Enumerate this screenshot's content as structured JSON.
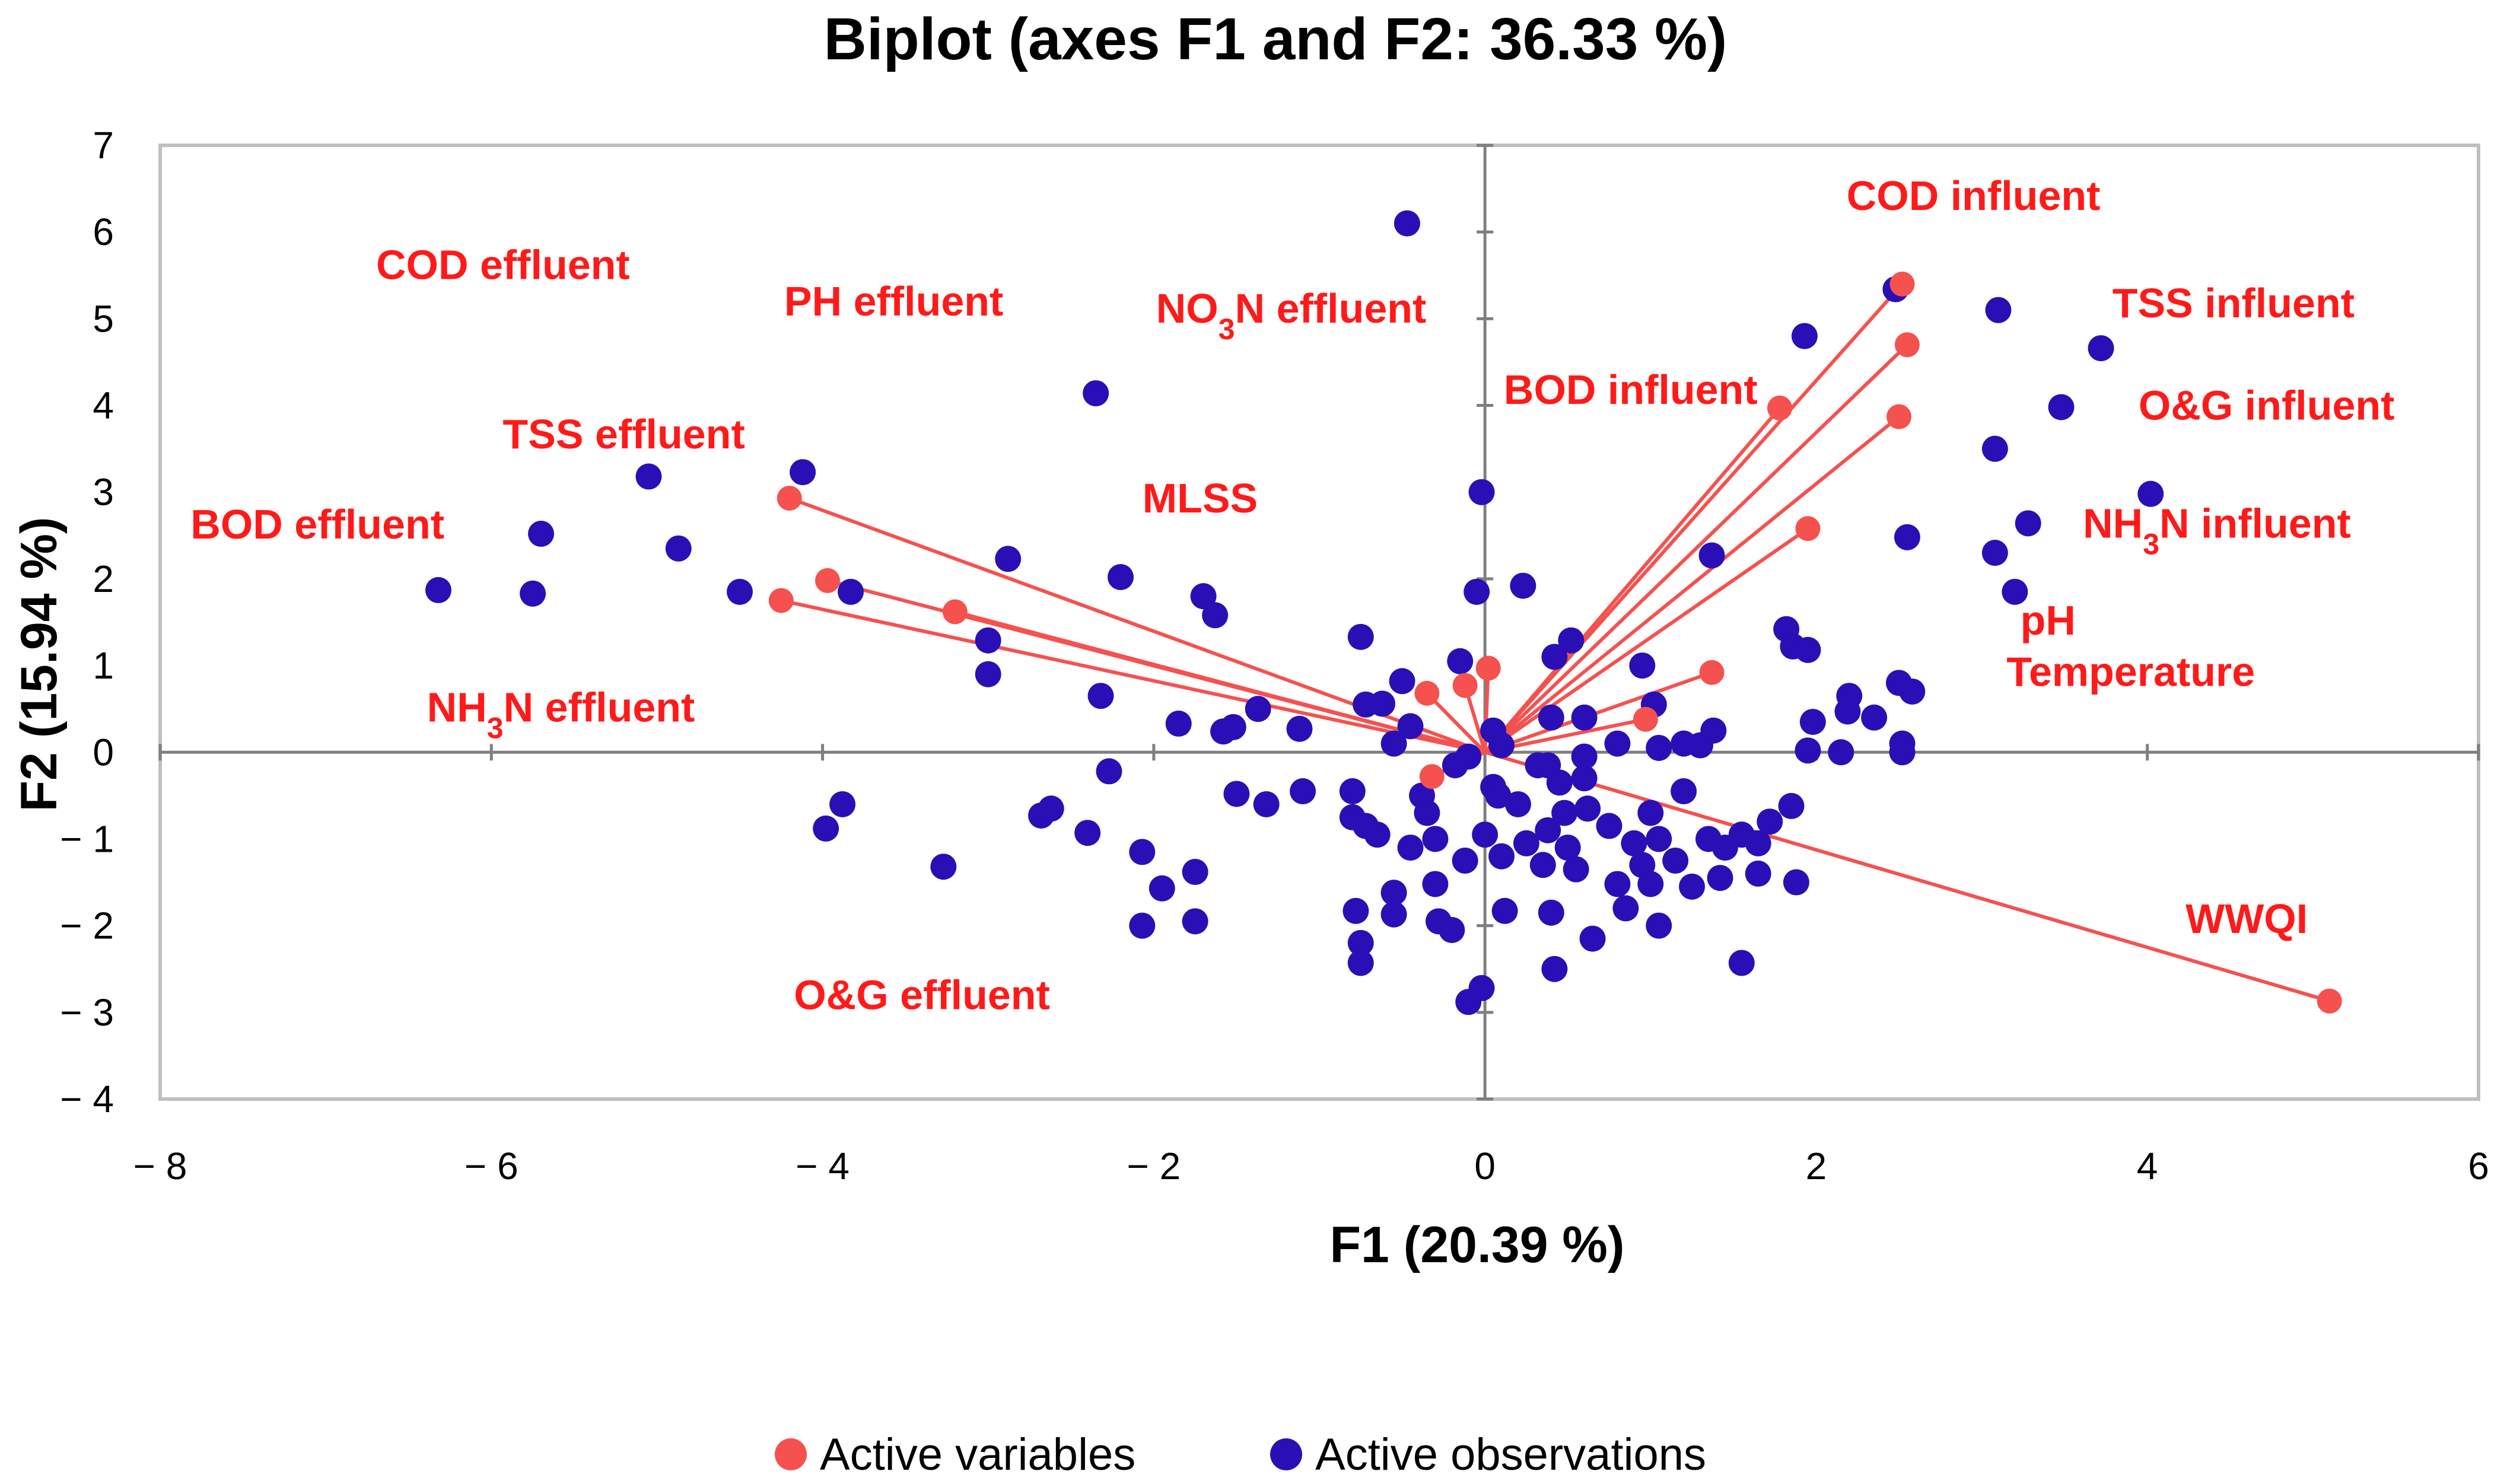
{
  "colors": {
    "variables": "#f5514f",
    "variable_label": "#ff1a1a",
    "observations": "#2a0fb6",
    "axis": "#7f7f7f",
    "frame": "#bfbfbf"
  },
  "chart_data": {
    "type": "scatter",
    "title": "Biplot (axes F1 and F2: 36.33 %)",
    "xlabel": "F1 (20.39 %)",
    "ylabel": "F2 (15.94 %)",
    "xlim": [
      -8,
      6
    ],
    "ylim": [
      -4,
      7
    ],
    "xticks": [
      "− 8",
      "− 6",
      "− 4",
      "− 2",
      "0",
      "2",
      "4",
      "6"
    ],
    "yticks": [
      "− 4",
      "− 3",
      "− 2",
      "− 1",
      "0",
      "1",
      "2",
      "3",
      "4",
      "5",
      "6",
      "7"
    ],
    "grid": false,
    "legend": {
      "position": "bottom",
      "entries": [
        "Active variables",
        "Active observations"
      ]
    },
    "series": [
      {
        "name": "Active variables",
        "points": [
          [
            2.52,
            5.4
          ],
          [
            2.55,
            4.7
          ],
          [
            1.78,
            3.97
          ],
          [
            2.5,
            3.87
          ],
          [
            1.95,
            2.58
          ],
          [
            1.37,
            0.92
          ],
          [
            0.97,
            0.38
          ],
          [
            5.1,
            -2.87
          ],
          [
            -4.2,
            2.93
          ],
          [
            -4.25,
            1.75
          ],
          [
            -3.97,
            1.98
          ],
          [
            -3.2,
            1.62
          ],
          [
            0.02,
            0.97
          ],
          [
            -0.35,
            0.68
          ],
          [
            -0.12,
            0.77
          ],
          [
            -0.32,
            -0.28
          ]
        ]
      },
      {
        "name": "Active observations",
        "points": [
          [
            -0.47,
            6.1
          ],
          [
            2.48,
            5.34
          ],
          [
            3.1,
            5.1
          ],
          [
            3.72,
            4.66
          ],
          [
            1.93,
            4.8
          ],
          [
            3.48,
            3.98
          ],
          [
            3.08,
            3.5
          ],
          [
            4.02,
            2.98
          ],
          [
            3.28,
            2.64
          ],
          [
            2.55,
            2.48
          ],
          [
            3.08,
            2.3
          ],
          [
            3.2,
            1.85
          ],
          [
            1.37,
            2.27
          ],
          [
            -5.05,
            3.18
          ],
          [
            -4.12,
            3.23
          ],
          [
            -5.7,
            2.52
          ],
          [
            -4.87,
            2.35
          ],
          [
            -6.32,
            1.87
          ],
          [
            -5.75,
            1.83
          ],
          [
            -4.5,
            1.85
          ],
          [
            -3.83,
            1.85
          ],
          [
            -3.0,
            1.29
          ],
          [
            -3.0,
            0.9
          ],
          [
            -2.88,
            2.23
          ],
          [
            -2.35,
            4.14
          ],
          [
            -2.2,
            2.02
          ],
          [
            -2.32,
            0.65
          ],
          [
            -1.7,
            1.8
          ],
          [
            -1.63,
            1.58
          ],
          [
            -1.85,
            0.33
          ],
          [
            -1.58,
            0.24
          ],
          [
            -1.52,
            0.29
          ],
          [
            -1.37,
            0.5
          ],
          [
            -1.12,
            0.27
          ],
          [
            -0.75,
            1.33
          ],
          [
            -0.72,
            0.55
          ],
          [
            -0.62,
            0.56
          ],
          [
            -0.5,
            0.82
          ],
          [
            -0.45,
            0.3
          ],
          [
            -0.55,
            0.1
          ],
          [
            -0.02,
            3.0
          ],
          [
            -0.05,
            1.85
          ],
          [
            0.23,
            1.92
          ],
          [
            -0.15,
            1.05
          ],
          [
            0.52,
            1.29
          ],
          [
            0.42,
            1.1
          ],
          [
            0.95,
            1.0
          ],
          [
            1.02,
            0.55
          ],
          [
            0.4,
            0.4
          ],
          [
            0.6,
            0.4
          ],
          [
            0.05,
            0.25
          ],
          [
            0.1,
            0.08
          ],
          [
            0.8,
            0.1
          ],
          [
            1.05,
            0.05
          ],
          [
            1.2,
            0.1
          ],
          [
            1.3,
            0.08
          ],
          [
            1.38,
            0.25
          ],
          [
            1.82,
            1.42
          ],
          [
            1.86,
            1.22
          ],
          [
            1.95,
            1.18
          ],
          [
            2.2,
            0.65
          ],
          [
            2.19,
            0.47
          ],
          [
            1.98,
            0.35
          ],
          [
            2.35,
            0.4
          ],
          [
            2.5,
            0.8
          ],
          [
            2.58,
            0.7
          ],
          [
            2.52,
            0.1
          ],
          [
            2.52,
            0.0
          ],
          [
            2.15,
            0.0
          ],
          [
            1.95,
            0.02
          ],
          [
            -3.98,
            -0.88
          ],
          [
            -3.88,
            -0.6
          ],
          [
            -3.27,
            -1.32
          ],
          [
            -2.68,
            -0.73
          ],
          [
            -2.62,
            -0.65
          ],
          [
            -2.4,
            -0.93
          ],
          [
            -2.27,
            -0.22
          ],
          [
            -2.07,
            -1.15
          ],
          [
            -1.95,
            -1.57
          ],
          [
            -2.07,
            -2.0
          ],
          [
            -1.75,
            -1.38
          ],
          [
            -1.75,
            -1.95
          ],
          [
            -1.5,
            -0.48
          ],
          [
            -1.32,
            -0.6
          ],
          [
            -1.1,
            -0.45
          ],
          [
            -0.8,
            -0.45
          ],
          [
            -0.8,
            -0.75
          ],
          [
            -0.72,
            -0.85
          ],
          [
            -0.65,
            -0.95
          ],
          [
            -0.78,
            -1.83
          ],
          [
            -0.75,
            -2.2
          ],
          [
            -0.75,
            -2.43
          ],
          [
            -0.55,
            -1.62
          ],
          [
            -0.55,
            -1.87
          ],
          [
            -0.45,
            -1.1
          ],
          [
            -0.38,
            -0.5
          ],
          [
            -0.35,
            -0.7
          ],
          [
            -0.3,
            -1.0
          ],
          [
            -0.3,
            -1.52
          ],
          [
            -0.28,
            -1.95
          ],
          [
            -0.2,
            -2.05
          ],
          [
            -0.18,
            -0.15
          ],
          [
            -0.1,
            -0.05
          ],
          [
            -0.12,
            -1.25
          ],
          [
            -0.1,
            -2.88
          ],
          [
            0.0,
            -0.95
          ],
          [
            0.05,
            -0.4
          ],
          [
            0.08,
            -0.5
          ],
          [
            0.1,
            -1.2
          ],
          [
            0.12,
            -1.83
          ],
          [
            0.25,
            -1.05
          ],
          [
            0.35,
            -1.3
          ],
          [
            0.38,
            -0.15
          ],
          [
            0.38,
            -0.9
          ],
          [
            0.4,
            -1.85
          ],
          [
            0.42,
            -2.5
          ],
          [
            0.45,
            -0.35
          ],
          [
            0.48,
            -0.7
          ],
          [
            0.5,
            -1.1
          ],
          [
            0.55,
            -1.35
          ],
          [
            0.6,
            -0.05
          ],
          [
            0.6,
            -0.3
          ],
          [
            0.62,
            -0.65
          ],
          [
            0.65,
            -2.15
          ],
          [
            0.75,
            -0.85
          ],
          [
            0.8,
            -1.52
          ],
          [
            0.85,
            -1.8
          ],
          [
            0.9,
            -1.05
          ],
          [
            0.95,
            -1.3
          ],
          [
            1.0,
            -0.7
          ],
          [
            1.0,
            -1.52
          ],
          [
            1.05,
            -2.0
          ],
          [
            1.05,
            -1.0
          ],
          [
            1.15,
            -1.25
          ],
          [
            1.2,
            -0.45
          ],
          [
            1.25,
            -1.55
          ],
          [
            1.35,
            -1.0
          ],
          [
            1.42,
            -1.45
          ],
          [
            1.45,
            -1.1
          ],
          [
            1.55,
            -0.95
          ],
          [
            1.55,
            -2.43
          ],
          [
            1.65,
            -1.4
          ],
          [
            1.65,
            -1.05
          ],
          [
            1.72,
            -0.8
          ],
          [
            1.85,
            -0.62
          ],
          [
            1.88,
            -1.5
          ],
          [
            -0.02,
            -2.72
          ],
          [
            0.32,
            -0.15
          ],
          [
            0.2,
            -0.6
          ]
        ]
      }
    ],
    "vectors_from_origin": "Active variables",
    "annotations": [
      {
        "text": "COD  influent",
        "x": 2.95,
        "y": 6.42
      },
      {
        "text": "TSS  influent",
        "x": 4.52,
        "y": 5.18
      },
      {
        "text": "BOD influent",
        "x": 0.88,
        "y": 4.18
      },
      {
        "text": "O&G  influent",
        "x": 4.72,
        "y": 4.0
      },
      {
        "text": "NH3N  influent",
        "x": 4.42,
        "y": 2.64
      },
      {
        "text": "pH",
        "x": 3.4,
        "y": 1.52
      },
      {
        "text": "Temperature",
        "x": 3.9,
        "y": 0.93
      },
      {
        "text": "WWQI",
        "x": 4.6,
        "y": -1.92
      },
      {
        "text": "COD effluent",
        "x": -5.93,
        "y": 5.62
      },
      {
        "text": "PH effluent",
        "x": -3.57,
        "y": 5.2
      },
      {
        "text": "NO3N effluent",
        "x": -1.17,
        "y": 5.12
      },
      {
        "text": "TSS effluent",
        "x": -5.2,
        "y": 3.67
      },
      {
        "text": "MLSS",
        "x": -1.72,
        "y": 2.93
      },
      {
        "text": "BOD effluent",
        "x": -7.05,
        "y": 2.63
      },
      {
        "text": "NH3N effluent",
        "x": -5.58,
        "y": 0.52
      },
      {
        "text": "O&G effluent",
        "x": -3.4,
        "y": -2.8
      }
    ]
  }
}
